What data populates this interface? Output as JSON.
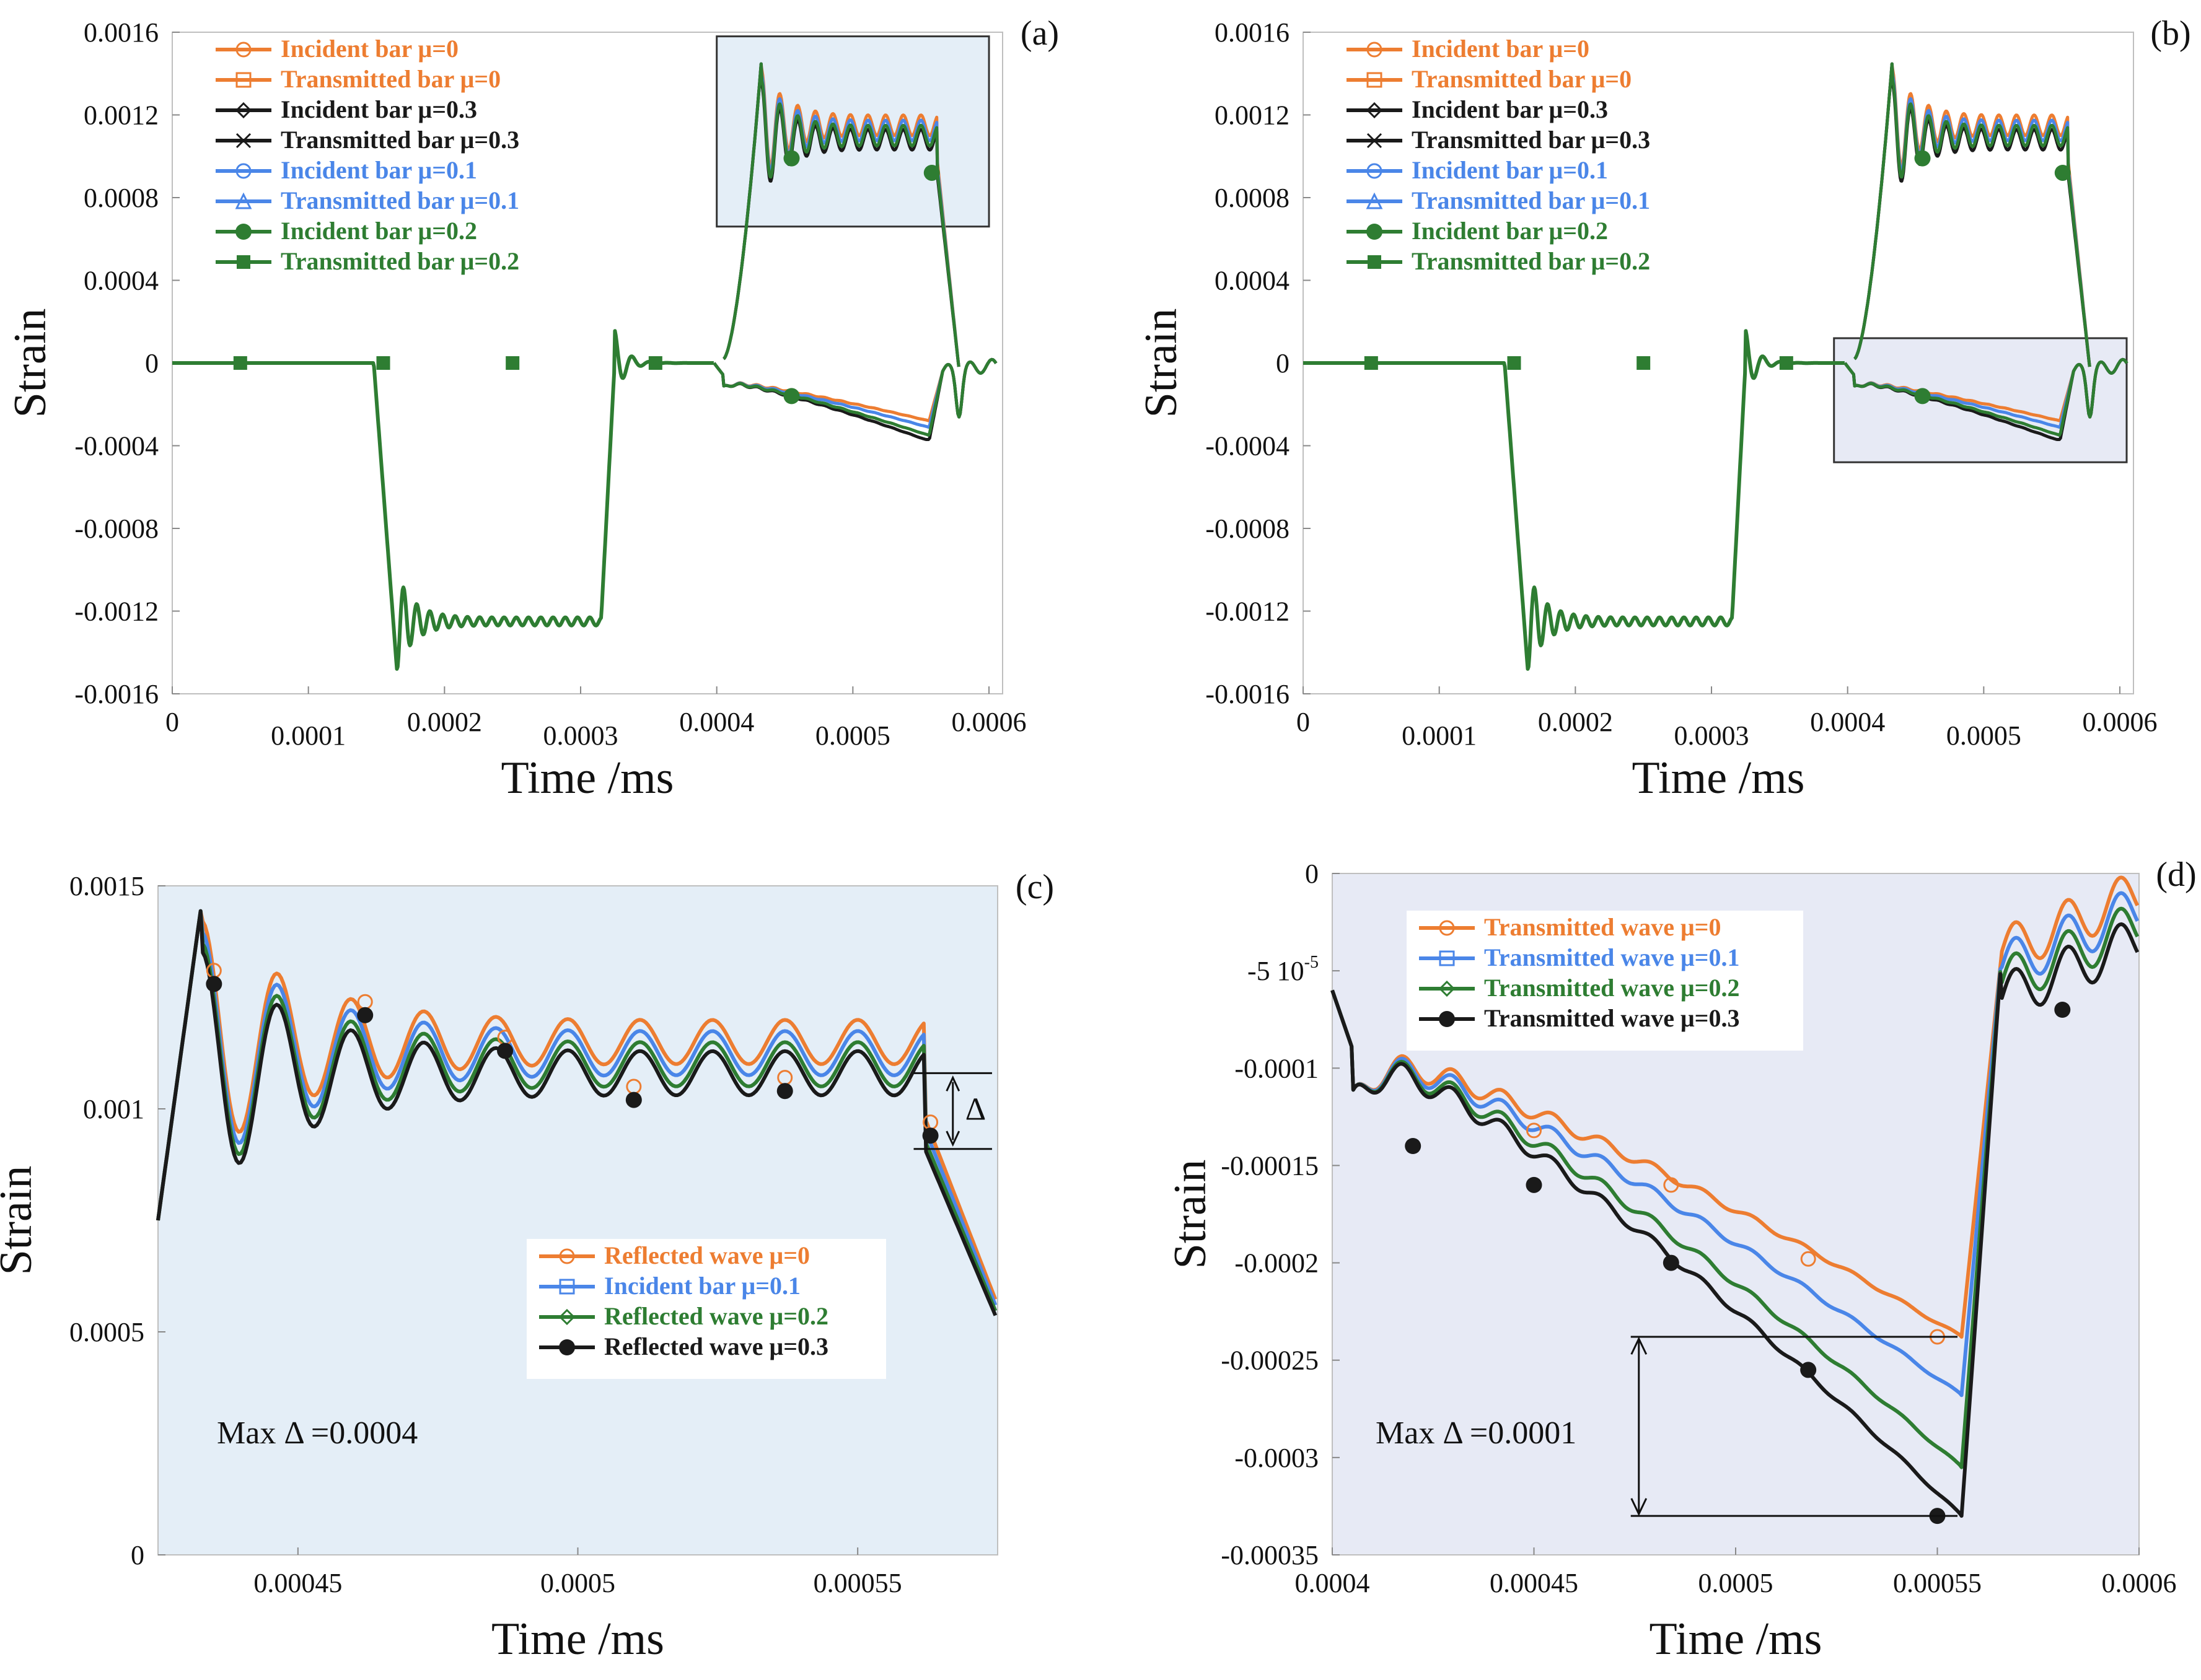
{
  "figure": {
    "colors": {
      "mu0": "#ED7D31",
      "mu01": "#4A86E8",
      "mu02": "#2E7D32",
      "mu03": "#1A1A1A",
      "inset_fill": "#E4EEF7",
      "inset_fill_d": "#E7EAF5",
      "frame": "#BFBFBF"
    }
  },
  "chart_data": [
    {
      "id": "a",
      "type": "line",
      "panel_label": "(a)",
      "xlabel": "Time /ms",
      "ylabel": "Strain",
      "xlim": [
        0,
        0.00061
      ],
      "ylim": [
        -0.0016,
        0.0016
      ],
      "xticks": [
        "0",
        "0.0001",
        "0.0002",
        "0.0003",
        "0.0004",
        "0.0005",
        "0.0006"
      ],
      "xtick_values": [
        0,
        0.0001,
        0.0002,
        0.0003,
        0.0004,
        0.0005,
        0.0006
      ],
      "yticks": [
        "0.0016",
        "0.0012",
        "0.0008",
        "0.0004",
        "0",
        "-0.0004",
        "-0.0008",
        "-0.0012",
        "-0.0016"
      ],
      "ytick_values": [
        0.0016,
        0.0012,
        0.0008,
        0.0004,
        0,
        -0.0004,
        -0.0008,
        -0.0012,
        -0.0016
      ],
      "legend": [
        {
          "label": "Incident bar μ=0",
          "color": "#ED7D31",
          "marker": "circle-open"
        },
        {
          "label": "Transmitted bar μ=0",
          "color": "#ED7D31",
          "marker": "square-open"
        },
        {
          "label": "Incident bar μ=0.3",
          "color": "#1A1A1A",
          "marker": "diamond-open"
        },
        {
          "label": "Transmitted bar μ=0.3",
          "color": "#1A1A1A",
          "marker": "x"
        },
        {
          "label": "Incident bar μ=0.1",
          "color": "#4A86E8",
          "marker": "circle-open"
        },
        {
          "label": "Transmitted bar μ=0.1",
          "color": "#4A86E8",
          "marker": "triangle-open"
        },
        {
          "label": "Incident bar μ=0.2",
          "color": "#2E7D32",
          "marker": "circle-filled"
        },
        {
          "label": "Transmitted bar μ=0.2",
          "color": "#2E7D32",
          "marker": "square-filled"
        }
      ],
      "highlight_window": {
        "x": [
          0.0004,
          0.0006
        ],
        "y": [
          0.00066,
          0.00158
        ]
      }
    },
    {
      "id": "b",
      "type": "line",
      "panel_label": "(b)",
      "xlabel": "Time /ms",
      "ylabel": "Strain",
      "xlim": [
        0,
        0.00061
      ],
      "ylim": [
        -0.0016,
        0.0016
      ],
      "xticks": [
        "0",
        "0.0001",
        "0.0002",
        "0.0003",
        "0.0004",
        "0.0005",
        "0.0006"
      ],
      "xtick_values": [
        0,
        0.0001,
        0.0002,
        0.0003,
        0.0004,
        0.0005,
        0.0006
      ],
      "yticks": [
        "0.0016",
        "0.0012",
        "0.0008",
        "0.0004",
        "0",
        "-0.0004",
        "-0.0008",
        "-0.0012",
        "-0.0016"
      ],
      "ytick_values": [
        0.0016,
        0.0012,
        0.0008,
        0.0004,
        0,
        -0.0004,
        -0.0008,
        -0.0012,
        -0.0016
      ],
      "legend": [
        {
          "label": "Incident bar μ=0",
          "color": "#ED7D31",
          "marker": "circle-open"
        },
        {
          "label": "Transmitted bar μ=0",
          "color": "#ED7D31",
          "marker": "square-open"
        },
        {
          "label": "Incident bar μ=0.3",
          "color": "#1A1A1A",
          "marker": "diamond-open"
        },
        {
          "label": "Transmitted bar μ=0.3",
          "color": "#1A1A1A",
          "marker": "x"
        },
        {
          "label": "Incident bar μ=0.1",
          "color": "#4A86E8",
          "marker": "circle-open"
        },
        {
          "label": "Transmitted bar μ=0.1",
          "color": "#4A86E8",
          "marker": "triangle-open"
        },
        {
          "label": "Incident bar μ=0.2",
          "color": "#2E7D32",
          "marker": "circle-filled"
        },
        {
          "label": "Transmitted bar μ=0.2",
          "color": "#2E7D32",
          "marker": "square-filled"
        }
      ],
      "highlight_window": {
        "x": [
          0.00039,
          0.000605
        ],
        "y": [
          -0.00048,
          0.00012
        ]
      }
    },
    {
      "id": "c",
      "type": "line",
      "panel_label": "(c)",
      "xlabel": "Time /ms",
      "ylabel": "Strain",
      "xlim": [
        0.000425,
        0.000575
      ],
      "ylim": [
        0,
        0.0015
      ],
      "xticks": [
        "0.00045",
        "0.0005",
        "0.00055"
      ],
      "xtick_values": [
        0.00045,
        0.0005,
        0.00055
      ],
      "yticks": [
        "0.0015",
        "0.001",
        "0.0005",
        "0"
      ],
      "ytick_values": [
        0.0015,
        0.001,
        0.0005,
        0
      ],
      "legend": [
        {
          "label": "Reflected wave μ=0",
          "color": "#ED7D31",
          "marker": "circle-open"
        },
        {
          "label": "Incident bar μ=0.1",
          "color": "#4A86E8",
          "marker": "square-open"
        },
        {
          "label": "Reflected wave μ=0.2",
          "color": "#2E7D32",
          "marker": "diamond-open"
        },
        {
          "label": "Reflected wave μ=0.3",
          "color": "#1A1A1A",
          "marker": "circle-filled"
        }
      ],
      "delta_symbol": "Δ",
      "annotation": "Max Δ =0.0004",
      "series_offsets": [
        0.0,
        -2.5e-05,
        -5e-05,
        -7e-05
      ]
    },
    {
      "id": "d",
      "type": "line",
      "panel_label": "(d)",
      "xlabel": "Time /ms",
      "ylabel": "Strain",
      "xlim": [
        0.0004,
        0.0006
      ],
      "ylim": [
        -0.00035,
        0
      ],
      "xticks": [
        "0.0004",
        "0.00045",
        "0.0005",
        "0.00055",
        "0.0006"
      ],
      "xtick_values": [
        0.0004,
        0.00045,
        0.0005,
        0.00055,
        0.0006
      ],
      "yticks": [
        "0",
        "-5 10-5",
        "-0.0001",
        "-0.00015",
        "-0.0002",
        "-0.00025",
        "-0.0003",
        "-0.00035"
      ],
      "ytick_values": [
        0,
        -5e-05,
        -0.0001,
        -0.00015,
        -0.0002,
        -0.00025,
        -0.0003,
        -0.00035
      ],
      "ytick_5e5_base": "-5 10",
      "ytick_5e5_exp": "-5",
      "legend": [
        {
          "label": "Transmitted wave μ=0",
          "color": "#ED7D31",
          "marker": "circle-open"
        },
        {
          "label": "Transmitted wave μ=0.1",
          "color": "#4A86E8",
          "marker": "square-open"
        },
        {
          "label": "Transmitted wave μ=0.2",
          "color": "#2E7D32",
          "marker": "diamond-open"
        },
        {
          "label": "Transmitted wave μ=0.3",
          "color": "#1A1A1A",
          "marker": "circle-filled"
        }
      ],
      "annotation": "Max Δ =0.0001",
      "minima": [
        -0.000238,
        -0.000268,
        -0.000305,
        -0.00033
      ]
    }
  ]
}
